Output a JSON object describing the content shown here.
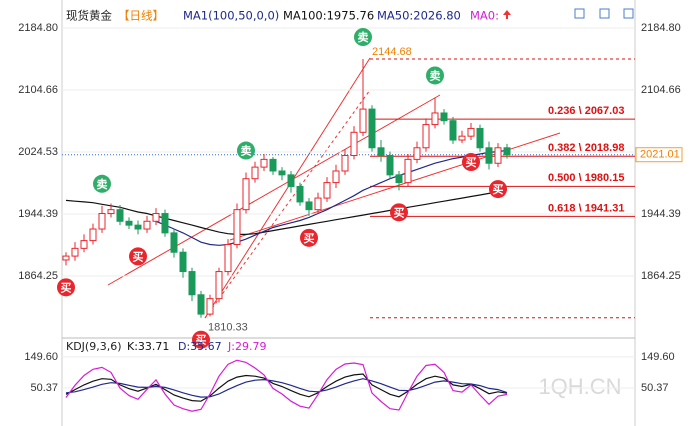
{
  "chart_data": [
    {
      "type": "candlestick",
      "header": [
        "现货黄金",
        "【日线】",
        "MA1(100,50,0,0)",
        "MA100:1975.76",
        "MA50:2026.80",
        "MA0:"
      ],
      "categories": [
        null,
        null,
        null,
        null,
        null,
        null,
        null,
        null,
        null,
        null,
        null,
        null,
        null,
        null,
        null,
        null,
        null,
        null,
        null,
        null,
        null,
        null,
        null,
        null,
        null,
        null,
        null,
        null,
        null,
        null,
        null,
        null,
        null,
        null,
        null,
        null,
        null,
        null,
        null,
        null,
        null,
        null,
        null,
        null,
        null,
        null,
        null,
        null,
        null,
        null
      ],
      "open": [
        1885,
        1890,
        1900,
        1910,
        1925,
        1945,
        1950,
        1935,
        1930,
        1925,
        1935,
        1945,
        1920,
        1895,
        1870,
        1840,
        1815,
        1835,
        1870,
        1905,
        1950,
        1990,
        2005,
        2015,
        2000,
        1995,
        1980,
        1960,
        1950,
        1965,
        1985,
        2000,
        2020,
        2050,
        2080,
        2030,
        2020,
        1995,
        1985,
        2015,
        2030,
        2060,
        2075,
        2065,
        2040,
        2045,
        2055,
        2030,
        2010,
        2030
      ],
      "high": [
        1895,
        1908,
        1918,
        1932,
        1955,
        1958,
        1956,
        1940,
        1936,
        1942,
        1952,
        1950,
        1925,
        1900,
        1875,
        1845,
        1840,
        1875,
        1912,
        1958,
        1998,
        2012,
        2022,
        2018,
        2005,
        2000,
        1985,
        1965,
        1972,
        1992,
        2008,
        2028,
        2058,
        2144.68,
        2085,
        2040,
        2025,
        2000,
        2022,
        2038,
        2068,
        2095,
        2080,
        2070,
        2052,
        2062,
        2060,
        2038,
        2036,
        2035
      ],
      "low": [
        1878,
        1884,
        1895,
        1905,
        1920,
        1940,
        1930,
        1925,
        1918,
        1920,
        1930,
        1915,
        1888,
        1862,
        1832,
        1810.33,
        1812,
        1830,
        1865,
        1900,
        1945,
        1985,
        2000,
        1995,
        1988,
        1972,
        1955,
        1942,
        1945,
        1960,
        1978,
        1995,
        2015,
        2045,
        2025,
        2012,
        1990,
        1975,
        1980,
        2010,
        2025,
        2055,
        2060,
        2035,
        2036,
        2040,
        2025,
        2002,
        2005,
        2016
      ],
      "close": [
        1890,
        1900,
        1910,
        1925,
        1945,
        1950,
        1935,
        1930,
        1925,
        1935,
        1945,
        1920,
        1895,
        1870,
        1840,
        1815,
        1835,
        1870,
        1905,
        1950,
        1990,
        2005,
        2015,
        2000,
        1995,
        1980,
        1960,
        1950,
        1965,
        1985,
        2000,
        2020,
        2050,
        2080,
        2030,
        2020,
        1995,
        1985,
        2015,
        2030,
        2060,
        2075,
        2065,
        2040,
        2045,
        2055,
        2030,
        2010,
        2030,
        2021.01
      ],
      "up_color": "#e8262d",
      "down_color": "#1a9a5a",
      "markers": [
        "买",
        null,
        null,
        null,
        "卖",
        null,
        null,
        null,
        "买",
        null,
        null,
        null,
        null,
        null,
        null,
        "买",
        null,
        null,
        null,
        null,
        "卖",
        null,
        null,
        null,
        null,
        null,
        null,
        "买",
        null,
        null,
        null,
        null,
        null,
        "卖",
        null,
        null,
        null,
        "买",
        null,
        null,
        null,
        "卖",
        null,
        null,
        null,
        "买",
        null,
        null,
        "买",
        null
      ],
      "series": [
        {
          "name": "MA100",
          "color": "#111111",
          "values": [
            1962,
            1961,
            1960,
            1959,
            1957,
            1955,
            1953,
            1950,
            1947,
            1945,
            1942,
            1939,
            1936,
            1933,
            1930,
            1927,
            1924,
            1921,
            1919,
            1918,
            1918,
            1919,
            1921,
            1923,
            1925,
            1927,
            1929,
            1931,
            1933,
            1935,
            1937,
            1939,
            1941,
            1943,
            1945,
            1947,
            1949,
            1951,
            1953,
            1955,
            1957,
            1959,
            1961,
            1963,
            1965,
            1967,
            1969,
            1971,
            1973,
            1975.76
          ]
        },
        {
          "name": "MA50",
          "color": "#1f2a8a",
          "values": [
            null,
            null,
            null,
            null,
            null,
            null,
            null,
            null,
            null,
            null,
            1935,
            1930,
            1925,
            1920,
            1914,
            1908,
            1905,
            1904,
            1905,
            1908,
            1912,
            1917,
            1922,
            1927,
            1930,
            1933,
            1936,
            1940,
            1945,
            1950,
            1956,
            1962,
            1968,
            1975,
            1980,
            1985,
            1990,
            1994,
            1998,
            2002,
            2006,
            2010,
            2013,
            2016,
            2018,
            2020,
            2022,
            2024,
            2025,
            2026.8
          ]
        }
      ],
      "levels": [
        {
          "label": "0.236 \\ 2067.03",
          "value": 2067.03
        },
        {
          "label": "0.382 \\ 2018.98",
          "value": 2018.98
        },
        {
          "label": "0.500 \\ 1980.15",
          "value": 1980.15
        },
        {
          "label": "0.618 \\ 1941.31",
          "value": 1941.31
        }
      ],
      "extremes": [
        {
          "label": "2144.68",
          "value": 2144.68
        },
        {
          "label": "1810.33",
          "value": 1810.33
        }
      ],
      "last_price": {
        "label": "2021.01",
        "value": 2021.01
      },
      "ylim": [
        1788,
        2205.5
      ],
      "yticks": [
        {
          "value": 2184.8,
          "label": "2184.80"
        },
        2104.66,
        2024.53,
        1944.39,
        1864.25
      ],
      "watermark": "1QH.CN"
    },
    {
      "type": "line",
      "header": "KDJ(9,3,6)",
      "series": [
        {
          "name": "K:33.71",
          "color": "#111111",
          "values": [
            30,
            45,
            60,
            72,
            80,
            78,
            60,
            48,
            40,
            50,
            62,
            45,
            28,
            18,
            10,
            8,
            25,
            50,
            72,
            85,
            90,
            88,
            82,
            65,
            55,
            42,
            30,
            22,
            35,
            55,
            72,
            85,
            92,
            95,
            60,
            45,
            30,
            22,
            40,
            62,
            80,
            88,
            82,
            60,
            55,
            62,
            48,
            32,
            38,
            33.71
          ]
        },
        {
          "name": "D:35.67",
          "color": "#1f2a8a",
          "values": [
            35,
            38,
            45,
            53,
            62,
            67,
            65,
            59,
            53,
            52,
            55,
            52,
            44,
            35,
            27,
            21,
            22,
            31,
            45,
            58,
            69,
            75,
            77,
            73,
            67,
            59,
            49,
            40,
            38,
            44,
            53,
            64,
            73,
            80,
            73,
            64,
            53,
            43,
            42,
            49,
            59,
            69,
            73,
            69,
            64,
            63,
            58,
            49,
            45,
            35.67
          ]
        },
        {
          "name": "J:29.79",
          "color": "#d81bd8",
          "values": [
            20,
            59,
            90,
            110,
            116,
            100,
            50,
            26,
            14,
            46,
            76,
            31,
            -4,
            -16,
            -24,
            -18,
            31,
            88,
            126,
            139,
            132,
            114,
            92,
            49,
            31,
            8,
            -8,
            -14,
            29,
            77,
            110,
            127,
            130,
            125,
            34,
            7,
            -16,
            -20,
            36,
            88,
            122,
            126,
            100,
            42,
            37,
            60,
            28,
            -2,
            24,
            29.79
          ]
        }
      ],
      "ylim": [
        -68,
        194
      ],
      "yticks": [
        {
          "value": 149.6,
          "label": "149.60"
        },
        50.37
      ]
    }
  ]
}
